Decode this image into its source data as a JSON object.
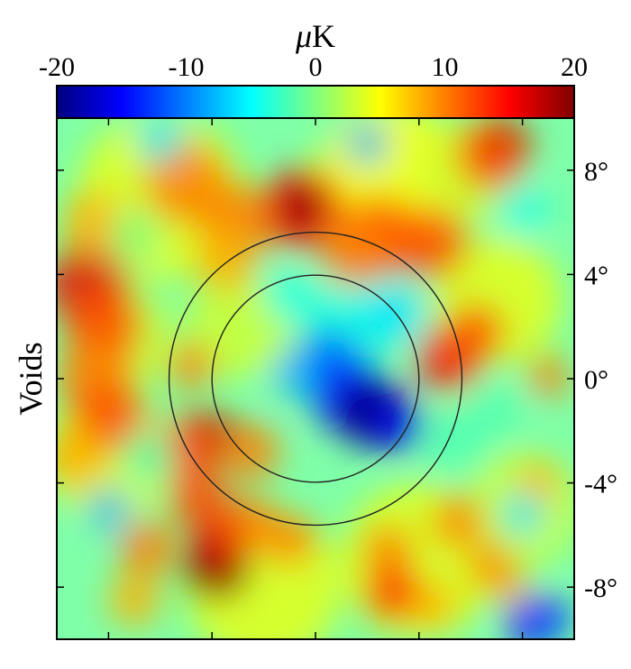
{
  "chart_data": {
    "type": "heatmap",
    "title": "",
    "colorbar": {
      "label_prefix": "μ",
      "label_suffix": "K",
      "range": [
        -20,
        20
      ],
      "ticks": [
        "-20",
        "-10",
        "0",
        "10",
        "20"
      ],
      "colormap": "jet",
      "colors": [
        "#00007f",
        "#0000ff",
        "#007fff",
        "#00ffff",
        "#7fff7f",
        "#ffff00",
        "#ff7f00",
        "#ff0000",
        "#7f0000"
      ]
    },
    "ylabel": "Voids",
    "xlabel": "",
    "xlim": [
      -10,
      10
    ],
    "ylim": [
      -10,
      10
    ],
    "y_ticks": [
      {
        "value": 8,
        "label": "8°"
      },
      {
        "value": 4,
        "label": "4°"
      },
      {
        "value": 0,
        "label": "0°"
      },
      {
        "value": -4,
        "label": "-4°"
      },
      {
        "value": -8,
        "label": "-8°"
      }
    ],
    "x_ticks": [
      -8,
      -4,
      0,
      4,
      8
    ],
    "circles": [
      {
        "center": [
          0,
          0
        ],
        "radius_deg": 4
      },
      {
        "center": [
          0,
          0
        ],
        "radius_deg": 5.66
      }
    ],
    "features": [
      {
        "x": 1.8,
        "y": -1.2,
        "value": -22
      },
      {
        "x": 0.6,
        "y": 0.6,
        "value": -8
      },
      {
        "x": -0.5,
        "y": 6.5,
        "value": 22
      },
      {
        "x": 7.2,
        "y": 9.0,
        "value": 20
      },
      {
        "x": -3.8,
        "y": -7.2,
        "value": 20
      }
    ],
    "grid": false
  }
}
